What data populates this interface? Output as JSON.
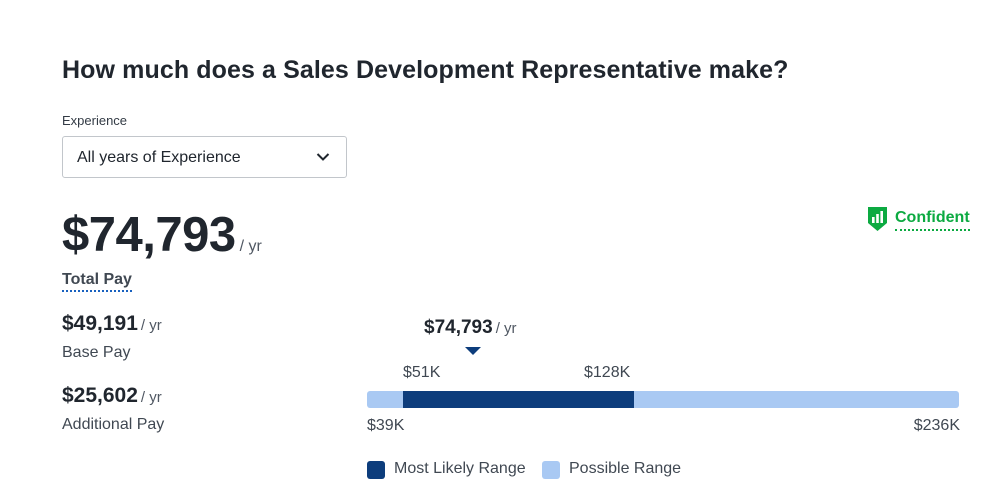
{
  "title": "How much does a Sales Development Representative make?",
  "experience": {
    "label": "Experience",
    "selected": "All years of Experience"
  },
  "pay": {
    "total": "$74,793",
    "total_per": "/ yr",
    "total_label": "Total Pay",
    "base": "$49,191",
    "base_per": "/ yr",
    "base_label": "Base Pay",
    "additional": "$25,602",
    "additional_per": "/ yr",
    "additional_label": "Additional Pay"
  },
  "confidence": {
    "label": "Confident",
    "icon": "bar-chart-shield-icon",
    "color": "#0caa41"
  },
  "range": {
    "median": "$74,793",
    "median_per": "/ yr",
    "likely_low": "$51K",
    "likely_high": "$128K",
    "possible_low": "$39K",
    "possible_high": "$236K",
    "values": {
      "min": 39,
      "likely_low": 51,
      "likely_high": 128,
      "max": 236,
      "median": 74.793
    }
  },
  "legend": {
    "most_likely": "Most Likely Range",
    "possible": "Possible Range"
  },
  "colors": {
    "most_likely": "#0d3d7c",
    "possible": "#a9c9f3",
    "text": "#20262e"
  }
}
